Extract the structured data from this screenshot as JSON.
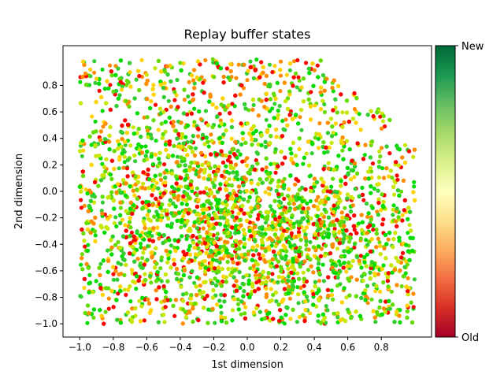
{
  "chart_data": {
    "type": "scatter",
    "title": "Replay buffer states",
    "xlabel": "1st dimension",
    "ylabel": "2nd dimension",
    "xlim": [
      -1.1,
      1.1
    ],
    "ylim": [
      -1.1,
      1.1
    ],
    "xticks": [
      -1.0,
      -0.8,
      -0.6,
      -0.4,
      -0.2,
      0.0,
      0.2,
      0.4,
      0.6,
      0.8
    ],
    "xtick_labels": [
      "−1.0",
      "−0.8",
      "−0.6",
      "−0.4",
      "−0.2",
      "0.0",
      "0.2",
      "0.4",
      "0.6",
      "0.8"
    ],
    "yticks": [
      -1.0,
      -0.8,
      -0.6,
      -0.4,
      -0.2,
      0.0,
      0.2,
      0.4,
      0.6,
      0.8
    ],
    "ytick_labels": [
      "−1.0",
      "−0.8",
      "−0.6",
      "−0.4",
      "−0.2",
      "0.0",
      "0.2",
      "0.4",
      "0.6",
      "0.8"
    ],
    "grid": false,
    "colormap": "RdYlGn",
    "colorbar": {
      "min_label": "Old",
      "max_label": "New",
      "stops": [
        "#a50026",
        "#d73027",
        "#f46d43",
        "#fdae61",
        "#fee08b",
        "#ffffbf",
        "#d9ef8b",
        "#a6d96a",
        "#66bd63",
        "#1a9850",
        "#006837"
      ]
    },
    "point_color": [
      "#ff0000",
      "#ff8c00",
      "#ffd200",
      "#c8e600",
      "#64dc00",
      "#00dc00",
      "#32cd32"
    ],
    "series": [
      {
        "x": [
          -0.98,
          -0.82,
          -0.7,
          -0.55,
          -0.4,
          -0.25,
          -0.1,
          0.05,
          0.2,
          0.3,
          0.35,
          0.42,
          -0.9,
          -0.6,
          -0.3,
          0.0,
          0.15,
          0.38
        ],
        "y": [
          0.98,
          0.95,
          0.9,
          0.93,
          0.97,
          0.99,
          0.96,
          0.92,
          0.98,
          0.99,
          0.97,
          0.95,
          0.85,
          0.88,
          0.86,
          0.84,
          0.9,
          0.75
        ],
        "age": [
          0.3,
          0.2,
          0.4,
          0.5,
          0.6,
          0.2,
          0.3,
          0.1,
          0.2,
          0.05,
          0.08,
          0.1,
          0.4,
          0.55,
          0.3,
          0.2,
          0.1,
          0.05
        ]
      }
    ]
  }
}
